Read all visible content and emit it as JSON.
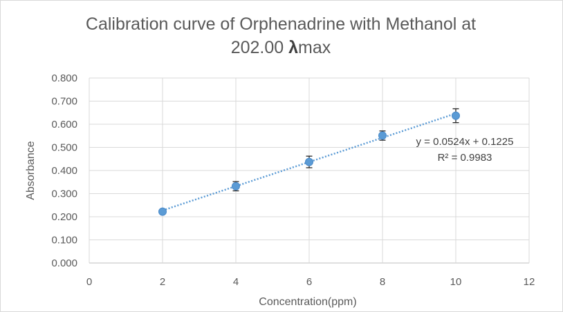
{
  "chart_data": {
    "type": "scatter",
    "title_line1": "Calibration curve of Orphenadrine with Methanol at",
    "title_line2_prefix": "202.00 ",
    "title_line2_symbol": "λ",
    "title_line2_suffix": "max",
    "xlabel": "Concentration(ppm)",
    "ylabel": "Absorbance",
    "xlim": [
      0,
      12
    ],
    "ylim": [
      0,
      0.8
    ],
    "x_ticks": [
      "0",
      "2",
      "4",
      "6",
      "8",
      "10",
      "12"
    ],
    "y_ticks": [
      "0.000",
      "0.100",
      "0.200",
      "0.300",
      "0.400",
      "0.500",
      "0.600",
      "0.700",
      "0.800"
    ],
    "grid": true,
    "series": [
      {
        "x": [
          2,
          4,
          6,
          8,
          10
        ],
        "y": [
          0.222,
          0.332,
          0.437,
          0.551,
          0.637
        ],
        "error": [
          0.006,
          0.02,
          0.025,
          0.02,
          0.03
        ],
        "color": "#5b9bd5"
      }
    ],
    "trendline": {
      "type": "linear",
      "slope": 0.0524,
      "intercept": 0.1225,
      "x_range": [
        2,
        10
      ],
      "style": "dotted",
      "color": "#5b9bd5",
      "equation": "y = 0.0524x + 0.1225",
      "r_squared": "R² = 0.9983"
    }
  }
}
